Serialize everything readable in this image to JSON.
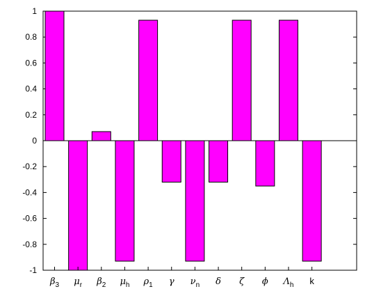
{
  "chart_data": {
    "type": "bar",
    "categories": [
      {
        "base": "β",
        "sub": "3",
        "italic": true
      },
      {
        "base": "μ",
        "sub": "r",
        "italic": true
      },
      {
        "base": "β",
        "sub": "2",
        "italic": true
      },
      {
        "base": "μ",
        "sub": "h",
        "italic": true
      },
      {
        "base": "ρ",
        "sub": "1",
        "italic": true
      },
      {
        "base": "γ",
        "sub": "",
        "italic": true
      },
      {
        "base": "ν",
        "sub": "n",
        "italic": true
      },
      {
        "base": "δ",
        "sub": "",
        "italic": true
      },
      {
        "base": "ζ",
        "sub": "",
        "italic": true
      },
      {
        "base": "ϕ",
        "sub": "",
        "italic": true
      },
      {
        "base": "Λ",
        "sub": "h",
        "italic": true
      },
      {
        "base": "k",
        "sub": "",
        "italic": false
      }
    ],
    "values": [
      1.0,
      -1.0,
      0.07,
      -0.93,
      0.93,
      -0.32,
      -0.93,
      -0.32,
      0.93,
      -0.35,
      0.93,
      -0.93
    ],
    "ylim": [
      -1,
      1
    ],
    "yticks": [
      "1",
      "0.8",
      "0.6",
      "0.4",
      "0.2",
      "0",
      "-0.2",
      "-0.4",
      "-0.6",
      "-0.8",
      "-1"
    ],
    "ytick_values": [
      1,
      0.8,
      0.6,
      0.4,
      0.2,
      0,
      -0.2,
      -0.4,
      -0.6,
      -0.8,
      -1
    ],
    "title": "",
    "xlabel": "",
    "ylabel": "",
    "grid": false,
    "colors": {
      "bar_fill": "#ff00ff",
      "bar_stroke": "#000000",
      "axis": "#000000"
    }
  }
}
